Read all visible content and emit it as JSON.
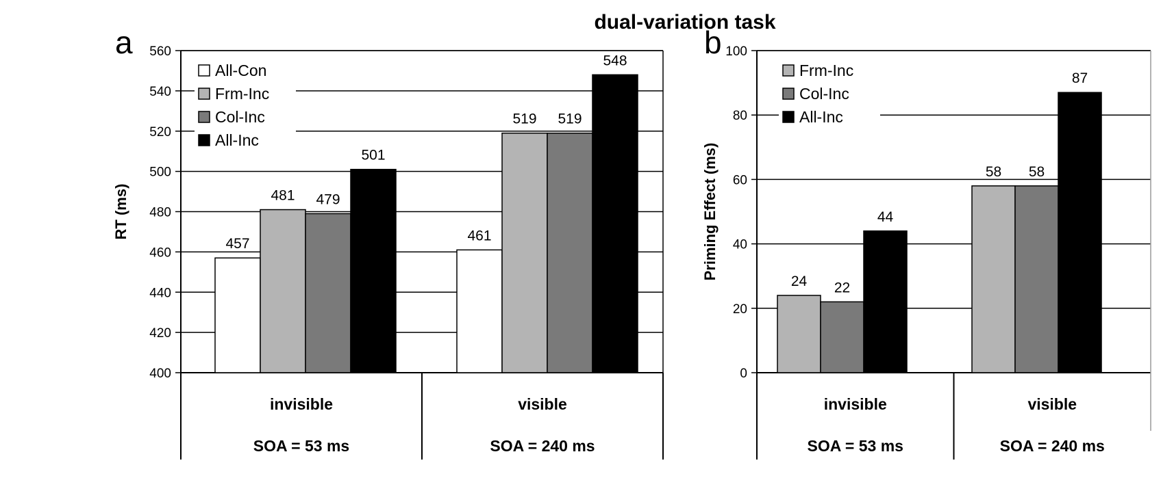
{
  "figure": {
    "title": "dual-variation task"
  },
  "chart_data": [
    {
      "panel": "a",
      "type": "bar",
      "ylabel": "RT (ms)",
      "ylim": [
        400,
        560
      ],
      "yticks": [
        400,
        420,
        440,
        460,
        480,
        500,
        520,
        540,
        560
      ],
      "grid": true,
      "legend": "top-left",
      "categories": [
        "invisible",
        "visible"
      ],
      "category_sublabels": [
        "SOA = 53 ms",
        "SOA = 240 ms"
      ],
      "series": [
        {
          "name": "All-Con",
          "color": "#ffffff",
          "values": [
            457,
            461
          ]
        },
        {
          "name": "Frm-Inc",
          "color": "#b4b4b4",
          "values": [
            481,
            519
          ]
        },
        {
          "name": "Col-Inc",
          "color": "#7a7a7a",
          "values": [
            479,
            519
          ]
        },
        {
          "name": "All-Inc",
          "color": "#000000",
          "values": [
            501,
            548
          ]
        }
      ]
    },
    {
      "panel": "b",
      "type": "bar",
      "ylabel": "Priming Effect (ms)",
      "ylim": [
        0,
        100
      ],
      "yticks": [
        0,
        20,
        40,
        60,
        80,
        100
      ],
      "grid": true,
      "legend": "top-left",
      "categories": [
        "invisible",
        "visible"
      ],
      "category_sublabels": [
        "SOA = 53 ms",
        "SOA = 240 ms"
      ],
      "series": [
        {
          "name": "Frm-Inc",
          "color": "#b4b4b4",
          "values": [
            24,
            58
          ]
        },
        {
          "name": "Col-Inc",
          "color": "#7a7a7a",
          "values": [
            22,
            58
          ]
        },
        {
          "name": "All-Inc",
          "color": "#000000",
          "values": [
            44,
            87
          ]
        }
      ]
    }
  ]
}
